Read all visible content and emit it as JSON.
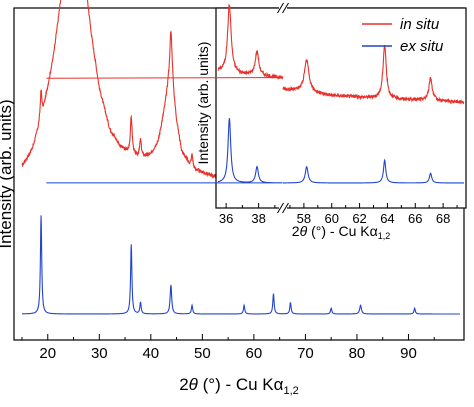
{
  "chart_data": [
    {
      "type": "line",
      "xlabel_prefix": "2",
      "xlabel_theta": "θ",
      "xlabel_suffix": " (°) - Cu Kα",
      "xlabel_subscript": "1,2",
      "ylabel": "Intensity (arb. units)",
      "xlim": [
        15,
        100
      ],
      "xticks": [
        20,
        30,
        40,
        50,
        60,
        70,
        80,
        90
      ],
      "xtick_labels": [
        "20",
        "30",
        "40",
        "50",
        "60",
        "70",
        "80",
        "90"
      ],
      "yticks_shown": false,
      "grid": false,
      "series": [
        {
          "id": "in_situ",
          "color": "#e8312a",
          "baseline": 0.36,
          "background": [
            [
              15,
              0.15
            ],
            [
              17,
              0.21
            ],
            [
              19,
              0.33
            ],
            [
              21,
              0.52
            ],
            [
              22.5,
              0.72
            ],
            [
              23.5,
              0.86
            ],
            [
              24.5,
              0.96
            ],
            [
              25.2,
              1.0
            ],
            [
              26,
              0.97
            ],
            [
              27,
              0.83
            ],
            [
              28.5,
              0.6
            ],
            [
              30,
              0.42
            ],
            [
              32,
              0.28
            ],
            [
              34,
              0.22
            ],
            [
              36,
              0.19
            ],
            [
              38,
              0.18
            ],
            [
              40,
              0.19
            ],
            [
              41.5,
              0.24
            ],
            [
              42.5,
              0.33
            ],
            [
              43.4,
              0.42
            ],
            [
              44.2,
              0.41
            ],
            [
              45,
              0.3
            ],
            [
              46,
              0.2
            ],
            [
              48,
              0.14
            ],
            [
              55,
              0.1
            ],
            [
              65,
              0.06
            ],
            [
              72,
              0.05
            ],
            [
              76,
              0.07
            ],
            [
              79,
              0.12
            ],
            [
              81,
              0.13
            ],
            [
              83,
              0.09
            ],
            [
              87,
              0.05
            ],
            [
              95,
              0.03
            ],
            [
              100,
              0.02
            ]
          ],
          "peaks": [
            [
              18.7,
              0.1,
              0.2
            ],
            [
              36.2,
              0.13,
              0.22
            ],
            [
              38.0,
              0.06,
              0.2
            ],
            [
              43.9,
              0.2,
              0.28
            ],
            [
              48.0,
              0.05,
              0.2
            ],
            [
              58.1,
              0.07,
              0.2
            ],
            [
              63.8,
              0.11,
              0.22
            ],
            [
              67.1,
              0.05,
              0.2
            ],
            [
              80.7,
              0.04,
              0.3
            ],
            [
              91.2,
              0.03,
              0.25
            ]
          ]
        },
        {
          "id": "ex_situ",
          "color": "#2244cc",
          "baseline": 0.0,
          "background": [
            [
              15,
              0.0
            ],
            [
              100,
              0.0
            ]
          ],
          "peaks": [
            [
              18.7,
              0.34,
              0.15
            ],
            [
              36.2,
              0.24,
              0.15
            ],
            [
              38.0,
              0.04,
              0.15
            ],
            [
              43.9,
              0.1,
              0.18
            ],
            [
              48.0,
              0.03,
              0.15
            ],
            [
              58.1,
              0.03,
              0.15
            ],
            [
              63.8,
              0.07,
              0.15
            ],
            [
              67.1,
              0.04,
              0.15
            ],
            [
              75.0,
              0.02,
              0.15
            ],
            [
              80.7,
              0.03,
              0.2
            ],
            [
              91.2,
              0.02,
              0.15
            ]
          ]
        }
      ]
    },
    {
      "type": "line",
      "role": "inset",
      "xlabel_prefix": "2",
      "xlabel_theta": "θ",
      "xlabel_suffix": " (°) - Cu Kα",
      "xlabel_subscript": "1,2",
      "ylabel": "Intensity (arb. units)",
      "axis_break": [
        39.5,
        56.5
      ],
      "segments": [
        [
          35.5,
          39.5
        ],
        [
          56.5,
          69.5
        ]
      ],
      "xticks": [
        36,
        38,
        58,
        60,
        62,
        64,
        66,
        68
      ],
      "xtick_labels": [
        "36",
        "38",
        "58",
        "60",
        "62",
        "64",
        "66",
        "68"
      ],
      "yticks_shown": false,
      "grid": false,
      "legend": {
        "placement": "top-right",
        "entries": [
          "in situ",
          "ex situ"
        ]
      },
      "series": [
        {
          "id": "in_situ",
          "name": "in situ",
          "color": "#e8312a",
          "baseline": 0.45,
          "background": [
            [
              35.5,
              0.24
            ],
            [
              37,
              0.22
            ],
            [
              39.5,
              0.2
            ],
            [
              56.5,
              0.13
            ],
            [
              60,
              0.09
            ],
            [
              64,
              0.07
            ],
            [
              69.5,
              0.05
            ]
          ],
          "peaks": [
            [
              36.2,
              0.42,
              0.13
            ],
            [
              37.9,
              0.15,
              0.13
            ],
            [
              58.2,
              0.2,
              0.2
            ],
            [
              63.8,
              0.33,
              0.14
            ],
            [
              67.1,
              0.14,
              0.14
            ]
          ]
        },
        {
          "id": "ex_situ",
          "name": "ex situ",
          "color": "#2244cc",
          "baseline": 0.0,
          "background": [
            [
              35.5,
              0.0
            ],
            [
              69.5,
              0.0
            ]
          ],
          "peaks": [
            [
              36.2,
              0.4,
              0.1
            ],
            [
              37.9,
              0.1,
              0.1
            ],
            [
              58.2,
              0.1,
              0.12
            ],
            [
              63.8,
              0.14,
              0.1
            ],
            [
              67.1,
              0.06,
              0.1
            ]
          ]
        }
      ]
    }
  ]
}
